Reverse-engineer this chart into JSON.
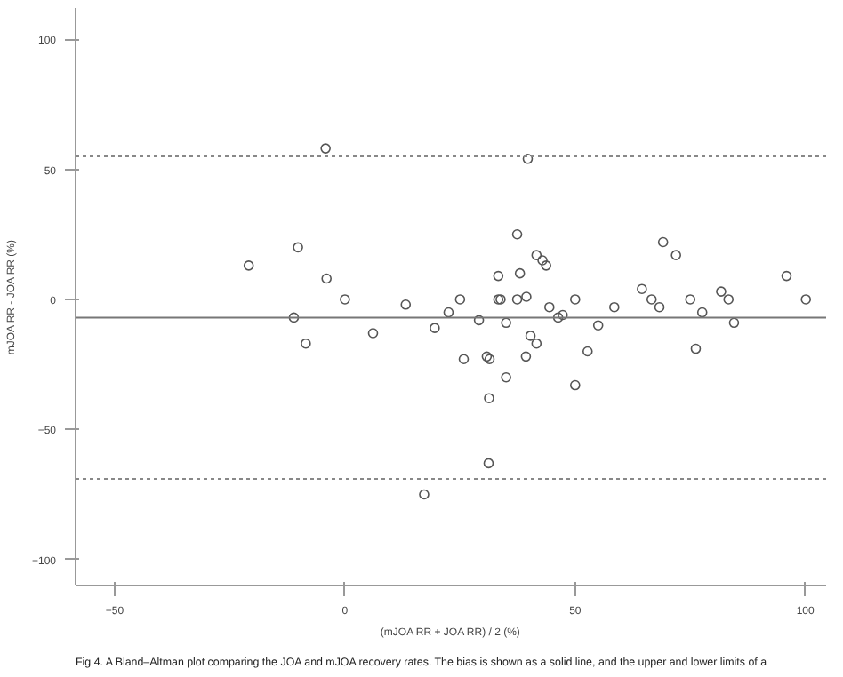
{
  "chart_data": {
    "type": "scatter",
    "xlabel": "(mJOA RR + JOA RR) / 2 (%)",
    "ylabel": "mJOA RR - JOA RR (%)",
    "x": [
      -4.2,
      39.7,
      -20.9,
      -10.2,
      -11.1,
      -8.5,
      -4,
      0,
      6.1,
      13.2,
      19.5,
      22.5,
      25,
      25.8,
      29.1,
      30.8,
      31.4,
      31.3,
      33.3,
      33.3,
      33.8,
      35,
      35,
      37.4,
      37.4,
      38,
      39.3,
      39.4,
      40.3,
      41.6,
      41.6,
      42.9,
      43.7,
      44.4,
      46.3,
      47.3,
      50,
      50,
      52.7,
      55,
      58.5,
      64.5,
      66.6,
      68.3,
      69.1,
      71.9,
      75,
      76.2,
      77.6,
      81.7,
      83.3,
      84.5,
      95.9,
      100.1,
      31.2,
      17.2
    ],
    "series": [
      {
        "color": "#555555",
        "values": [
          58,
          54,
          13,
          20,
          -7,
          -17,
          8,
          0,
          -13,
          -2,
          -11,
          -5,
          0,
          -23,
          -8,
          -22,
          -23,
          -38,
          9,
          0,
          0,
          -9,
          -30,
          25,
          0,
          10,
          -22,
          1,
          -14,
          17,
          -17,
          15,
          13,
          -3,
          -7,
          -6,
          0,
          -33,
          -20,
          -10,
          -3,
          4,
          0,
          -3,
          22,
          17,
          0,
          -19,
          -5,
          3,
          0,
          -9,
          9,
          0,
          -63,
          -75
        ]
      }
    ],
    "xlim": [
      -58.5,
      104.5
    ],
    "ylim": [
      -110,
      112
    ],
    "xticks": [
      -50,
      0,
      50,
      100
    ],
    "yticks": [
      -100,
      -50,
      0,
      50,
      100
    ],
    "marker": "circle",
    "grid": false,
    "ref_lines": [
      {
        "axis": "y",
        "value": 55,
        "color": "#888888",
        "line_style": "dotted"
      },
      {
        "axis": "y",
        "value": -7,
        "color": "#777777",
        "line_style": "solid"
      },
      {
        "axis": "y",
        "value": -69,
        "color": "#888888",
        "line_style": "dotted"
      }
    ],
    "annotations": [
      "Fig 4. A Bland–Altman plot comparing the JOA and mJOA recovery rates. The bias is shown as a solid line, and the upper and lower limits of a"
    ]
  }
}
